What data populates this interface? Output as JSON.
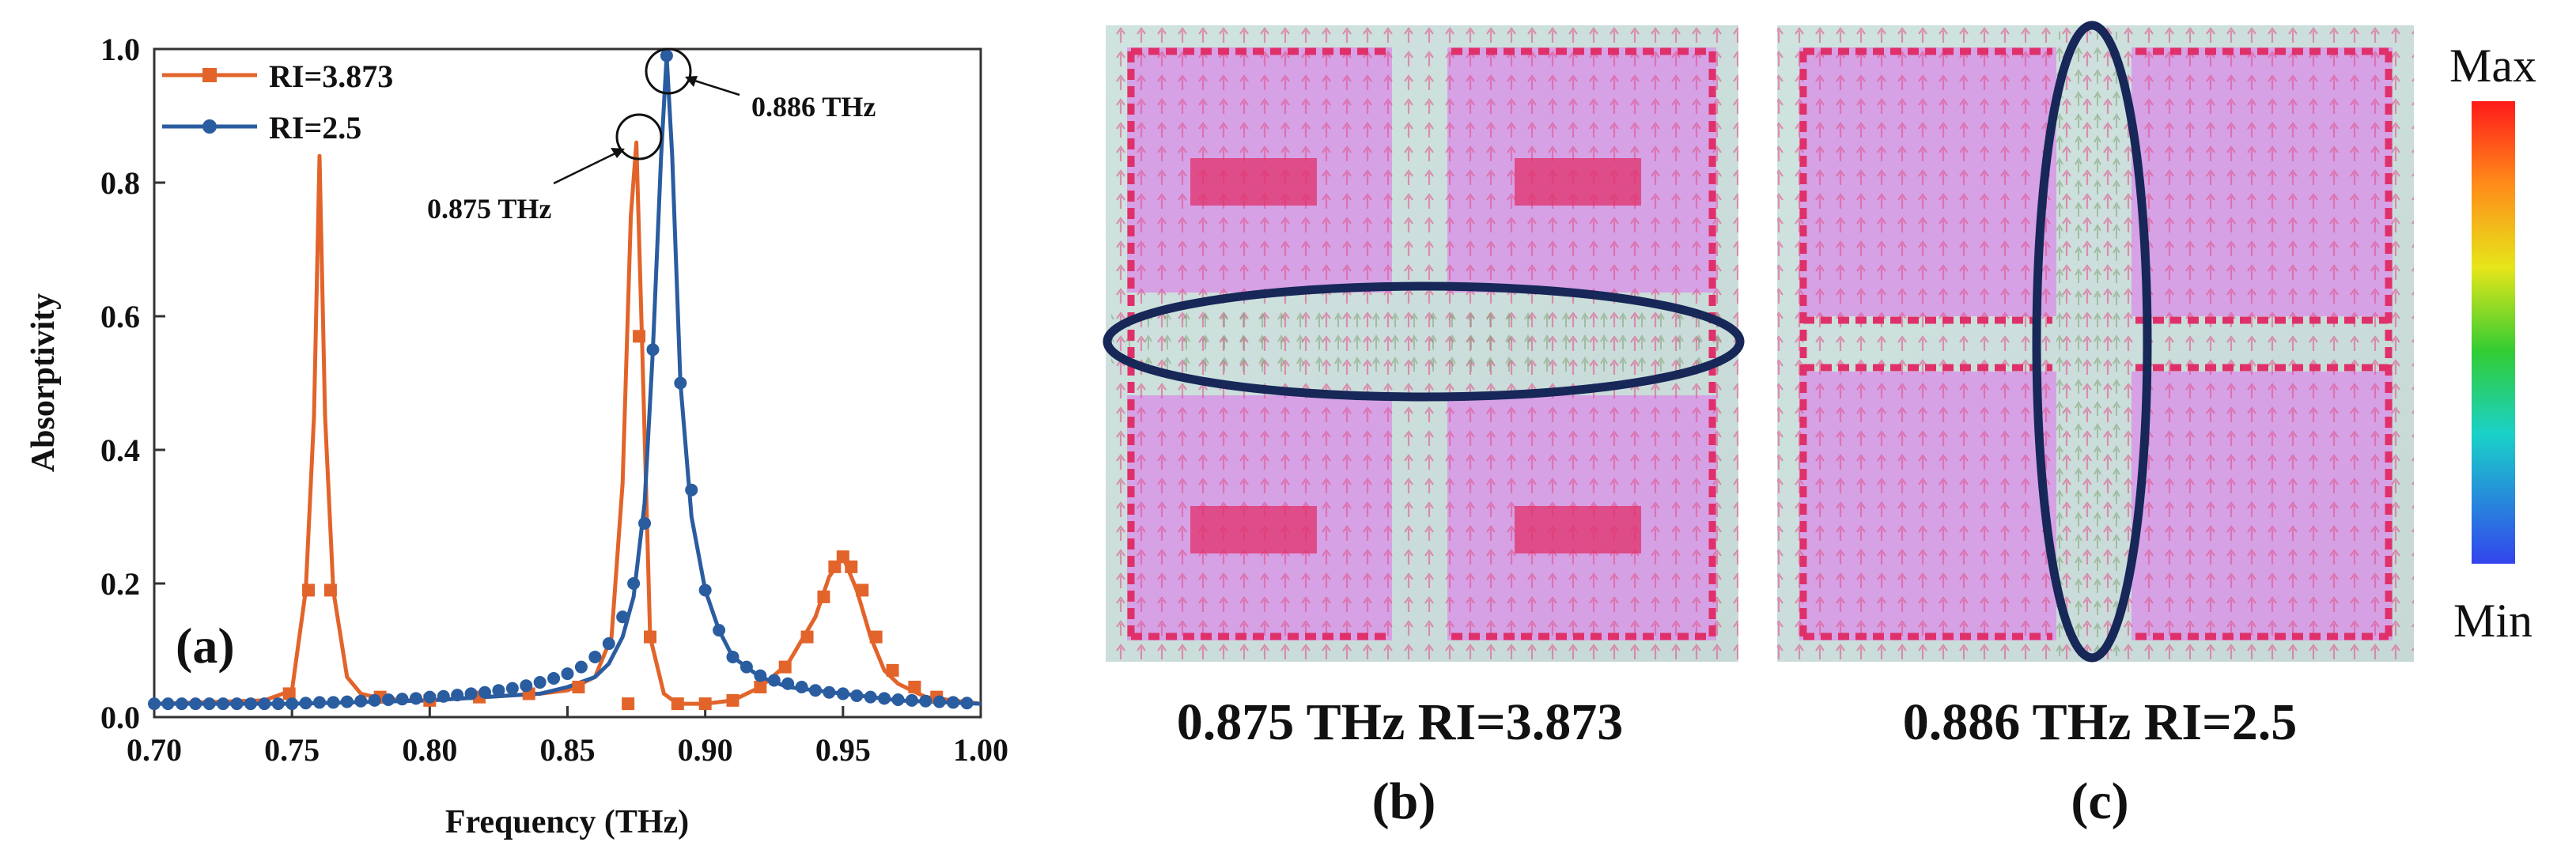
{
  "figure": {
    "panel_a": {
      "tag": "(a)",
      "x_label": "Frequency (THz)",
      "y_label": "Absorptivity"
    },
    "panel_b": {
      "caption": "0.875 THz RI=3.873",
      "tag": "(b)"
    },
    "panel_c": {
      "caption": "0.886 THz RI=2.5",
      "tag": "(c)"
    },
    "colorbar": {
      "max_label": "Max",
      "min_label": "Min"
    }
  },
  "chart_data": {
    "type": "line",
    "title": "",
    "xlabel": "Frequency (THz)",
    "ylabel": "Absorptivity",
    "xlim": [
      0.7,
      1.0
    ],
    "ylim": [
      0.0,
      1.0
    ],
    "xticks": [
      "0.70",
      "0.75",
      "0.80",
      "0.85",
      "0.90",
      "0.95",
      "1.00"
    ],
    "yticks": [
      "0.0",
      "0.2",
      "0.4",
      "0.6",
      "0.8",
      "1.0"
    ],
    "legend": "top-left",
    "series": [
      {
        "name": "RI=3.873",
        "color": "#E2642A",
        "marker": "square",
        "x": [
          0.7,
          0.74,
          0.75,
          0.755,
          0.758,
          0.76,
          0.762,
          0.765,
          0.77,
          0.775,
          0.78,
          0.79,
          0.8,
          0.82,
          0.84,
          0.85,
          0.86,
          0.866,
          0.87,
          0.873,
          0.875,
          0.877,
          0.88,
          0.885,
          0.89,
          0.9,
          0.91,
          0.92,
          0.93,
          0.94,
          0.945,
          0.95,
          0.955,
          0.96,
          0.965,
          0.97,
          0.98,
          1.0
        ],
        "y": [
          0.02,
          0.025,
          0.04,
          0.19,
          0.45,
          0.84,
          0.45,
          0.19,
          0.06,
          0.035,
          0.03,
          0.025,
          0.025,
          0.03,
          0.035,
          0.04,
          0.06,
          0.12,
          0.35,
          0.75,
          0.86,
          0.57,
          0.12,
          0.035,
          0.02,
          0.02,
          0.025,
          0.045,
          0.08,
          0.15,
          0.21,
          0.24,
          0.19,
          0.12,
          0.07,
          0.05,
          0.03,
          0.02
        ],
        "marker_x": [
          0.749,
          0.756,
          0.764,
          0.782,
          0.8,
          0.818,
          0.836,
          0.854,
          0.872,
          0.876,
          0.88,
          0.89,
          0.9,
          0.91,
          0.92,
          0.929,
          0.937,
          0.943,
          0.947,
          0.95,
          0.953,
          0.957,
          0.962,
          0.968,
          0.976,
          0.984
        ],
        "marker_y": [
          0.035,
          0.19,
          0.19,
          0.03,
          0.025,
          0.03,
          0.035,
          0.045,
          0.02,
          0.57,
          0.12,
          0.02,
          0.02,
          0.025,
          0.045,
          0.075,
          0.12,
          0.18,
          0.225,
          0.24,
          0.225,
          0.19,
          0.12,
          0.07,
          0.045,
          0.03
        ]
      },
      {
        "name": "RI=2.5",
        "color": "#2A5CA0",
        "marker": "circle",
        "x": [
          0.7,
          0.75,
          0.8,
          0.82,
          0.84,
          0.85,
          0.86,
          0.865,
          0.87,
          0.874,
          0.878,
          0.881,
          0.884,
          0.886,
          0.888,
          0.891,
          0.895,
          0.9,
          0.905,
          0.91,
          0.92,
          0.93,
          0.95,
          0.97,
          1.0
        ],
        "y": [
          0.02,
          0.02,
          0.025,
          0.03,
          0.035,
          0.045,
          0.06,
          0.08,
          0.12,
          0.18,
          0.32,
          0.55,
          0.84,
          0.99,
          0.84,
          0.5,
          0.3,
          0.19,
          0.13,
          0.09,
          0.06,
          0.045,
          0.035,
          0.025,
          0.02
        ],
        "marker_x": [
          0.7,
          0.705,
          0.71,
          0.715,
          0.72,
          0.725,
          0.73,
          0.735,
          0.74,
          0.745,
          0.75,
          0.755,
          0.76,
          0.765,
          0.77,
          0.775,
          0.78,
          0.785,
          0.79,
          0.795,
          0.8,
          0.805,
          0.81,
          0.815,
          0.82,
          0.825,
          0.83,
          0.835,
          0.84,
          0.845,
          0.85,
          0.855,
          0.86,
          0.865,
          0.87,
          0.874,
          0.878,
          0.881,
          0.886,
          0.891,
          0.895,
          0.9,
          0.905,
          0.91,
          0.915,
          0.92,
          0.925,
          0.93,
          0.935,
          0.94,
          0.945,
          0.95,
          0.955,
          0.96,
          0.965,
          0.97,
          0.975,
          0.98,
          0.985,
          0.99,
          0.995
        ],
        "marker_y": [
          0.02,
          0.02,
          0.02,
          0.02,
          0.02,
          0.02,
          0.02,
          0.02,
          0.02,
          0.02,
          0.02,
          0.021,
          0.022,
          0.022,
          0.023,
          0.024,
          0.025,
          0.026,
          0.027,
          0.028,
          0.03,
          0.031,
          0.033,
          0.035,
          0.037,
          0.04,
          0.043,
          0.047,
          0.052,
          0.058,
          0.065,
          0.075,
          0.09,
          0.11,
          0.15,
          0.2,
          0.29,
          0.55,
          0.99,
          0.5,
          0.34,
          0.19,
          0.13,
          0.09,
          0.075,
          0.062,
          0.055,
          0.05,
          0.045,
          0.04,
          0.037,
          0.035,
          0.032,
          0.03,
          0.028,
          0.026,
          0.025,
          0.024,
          0.023,
          0.022,
          0.021
        ]
      }
    ],
    "annotations": [
      {
        "text": "0.875 THz",
        "x": 0.875,
        "y": 0.86
      },
      {
        "text": "0.886 THz",
        "x": 0.886,
        "y": 0.99
      }
    ]
  }
}
